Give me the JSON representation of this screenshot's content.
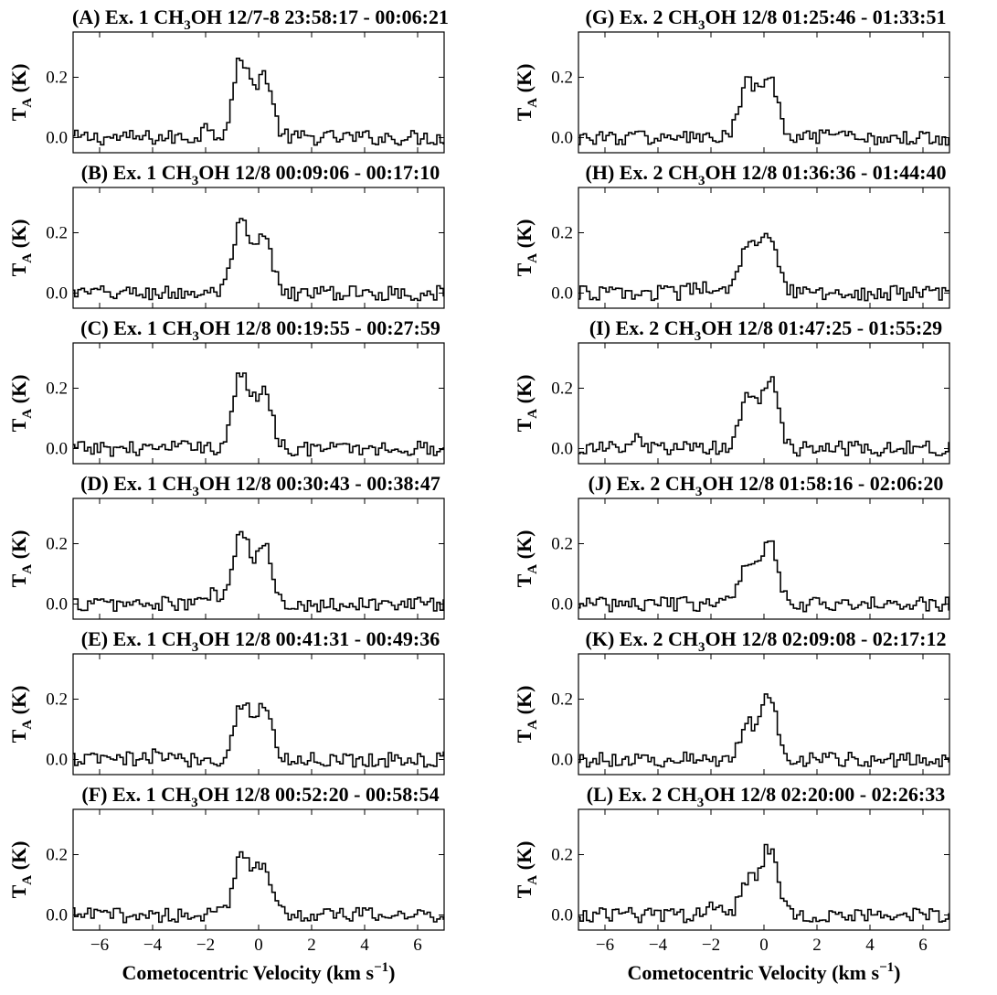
{
  "figure": {
    "xlabel": "Cometocentric Velocity (km s⁻¹)",
    "line_color": "#000000"
  },
  "chart_data": [
    {
      "type": "line",
      "panel": "A",
      "title": "(A) Ex. 1 CH₃OH 12/7-8 23:58:17 - 00:06:21",
      "ylabel": "T_A (K)",
      "xlabel": "",
      "xlim": [
        -7,
        7
      ],
      "ylim": [
        -0.05,
        0.35
      ],
      "xticks": [
        -6,
        -4,
        -2,
        0,
        2,
        4,
        6
      ],
      "yticks": [
        0.0,
        0.2
      ],
      "x_start": -7.0,
      "x_step": 0.122,
      "peaks": [
        [
          -0.65,
          0.26
        ],
        [
          0.2,
          0.21
        ]
      ],
      "bumps": [
        [
          -1.9,
          0.04
        ]
      ]
    },
    {
      "type": "line",
      "panel": "B",
      "title": "(B) Ex. 1 CH₃OH 12/8 00:09:06 - 00:17:10",
      "ylabel": "T_A (K)",
      "xlabel": "",
      "xlim": [
        -7,
        7
      ],
      "ylim": [
        -0.05,
        0.35
      ],
      "xticks": [
        -6,
        -4,
        -2,
        0,
        2,
        4,
        6
      ],
      "yticks": [
        0.0,
        0.2
      ],
      "x_start": -7.0,
      "x_step": 0.122,
      "peaks": [
        [
          -0.65,
          0.23
        ],
        [
          0.2,
          0.18
        ]
      ],
      "bumps": []
    },
    {
      "type": "line",
      "panel": "C",
      "title": "(C) Ex. 1 CH₃OH 12/8 00:19:55 - 00:27:59",
      "ylabel": "T_A (K)",
      "xlabel": "",
      "xlim": [
        -7,
        7
      ],
      "ylim": [
        -0.05,
        0.35
      ],
      "xticks": [
        -6,
        -4,
        -2,
        0,
        2,
        4,
        6
      ],
      "yticks": [
        0.0,
        0.2
      ],
      "x_start": -7.0,
      "x_step": 0.122,
      "peaks": [
        [
          -0.65,
          0.25
        ],
        [
          0.2,
          0.2
        ]
      ],
      "bumps": [
        [
          -2.4,
          0.02
        ]
      ]
    },
    {
      "type": "line",
      "panel": "D",
      "title": "(D) Ex. 1 CH₃OH 12/8 00:30:43 - 00:38:47",
      "ylabel": "T_A (K)",
      "xlabel": "",
      "xlim": [
        -7,
        7
      ],
      "ylim": [
        -0.05,
        0.35
      ],
      "xticks": [
        -6,
        -4,
        -2,
        0,
        2,
        4,
        6
      ],
      "yticks": [
        0.0,
        0.2
      ],
      "x_start": -7.0,
      "x_step": 0.122,
      "peaks": [
        [
          -0.65,
          0.23
        ],
        [
          0.2,
          0.19
        ]
      ],
      "bumps": [
        [
          -1.7,
          0.04
        ]
      ]
    },
    {
      "type": "line",
      "panel": "E",
      "title": "(E) Ex. 1 CH₃OH 12/8 00:41:31 - 00:49:36",
      "ylabel": "T_A (K)",
      "xlabel": "",
      "xlim": [
        -7,
        7
      ],
      "ylim": [
        -0.05,
        0.35
      ],
      "xticks": [
        -6,
        -4,
        -2,
        0,
        2,
        4,
        6
      ],
      "yticks": [
        0.0,
        0.2
      ],
      "x_start": -7.0,
      "x_step": 0.122,
      "peaks": [
        [
          -0.6,
          0.19
        ],
        [
          0.2,
          0.17
        ]
      ],
      "bumps": [
        [
          -3.8,
          0.02
        ]
      ]
    },
    {
      "type": "line",
      "panel": "F",
      "title": "(F) Ex. 1 CH₃OH 12/8 00:52:20 - 00:58:54",
      "ylabel": "T_A (K)",
      "xlabel": "Cometocentric Velocity (km s⁻¹)",
      "xlim": [
        -7,
        7
      ],
      "ylim": [
        -0.05,
        0.35
      ],
      "xticks": [
        -6,
        -4,
        -2,
        0,
        2,
        4,
        6
      ],
      "yticks": [
        0.0,
        0.2
      ],
      "x_start": -7.0,
      "x_step": 0.122,
      "peaks": [
        [
          -0.6,
          0.21
        ],
        [
          0.2,
          0.17
        ]
      ],
      "bumps": []
    },
    {
      "type": "line",
      "panel": "G",
      "title": "(G) Ex. 2 CH₃OH 12/8 01:25:46 - 01:33:51",
      "ylabel": "T_A (K)",
      "xlabel": "",
      "xlim": [
        -7,
        7
      ],
      "ylim": [
        -0.05,
        0.35
      ],
      "xticks": [
        -6,
        -4,
        -2,
        0,
        2,
        4,
        6
      ],
      "yticks": [
        0.0,
        0.2
      ],
      "x_start": -7.0,
      "x_step": 0.122,
      "peaks": [
        [
          -0.6,
          0.18
        ],
        [
          0.2,
          0.2
        ]
      ],
      "bumps": []
    },
    {
      "type": "line",
      "panel": "H",
      "title": "(H) Ex. 2 CH₃OH 12/8 01:36:36 - 01:44:40",
      "ylabel": "T_A (K)",
      "xlabel": "",
      "xlim": [
        -7,
        7
      ],
      "ylim": [
        -0.05,
        0.35
      ],
      "xticks": [
        -6,
        -4,
        -2,
        0,
        2,
        4,
        6
      ],
      "yticks": [
        0.0,
        0.2
      ],
      "x_start": -7.0,
      "x_step": 0.122,
      "peaks": [
        [
          -0.6,
          0.16
        ],
        [
          0.2,
          0.19
        ]
      ],
      "bumps": [
        [
          -2.5,
          0.03
        ]
      ]
    },
    {
      "type": "line",
      "panel": "I",
      "title": "(I) Ex. 2 CH₃OH 12/8 01:47:25 - 01:55:29",
      "ylabel": "T_A (K)",
      "xlabel": "",
      "xlim": [
        -7,
        7
      ],
      "ylim": [
        -0.05,
        0.35
      ],
      "xticks": [
        -6,
        -4,
        -2,
        0,
        2,
        4,
        6
      ],
      "yticks": [
        0.0,
        0.2
      ],
      "x_start": -7.0,
      "x_step": 0.122,
      "peaks": [
        [
          -0.6,
          0.17
        ],
        [
          0.2,
          0.23
        ]
      ],
      "bumps": [
        [
          -4.8,
          0.03
        ]
      ]
    },
    {
      "type": "line",
      "panel": "J",
      "title": "(J) Ex. 2 CH₃OH 12/8 01:58:16 - 02:06:20",
      "ylabel": "T_A (K)",
      "xlabel": "",
      "xlim": [
        -7,
        7
      ],
      "ylim": [
        -0.05,
        0.35
      ],
      "xticks": [
        -6,
        -4,
        -2,
        0,
        2,
        4,
        6
      ],
      "yticks": [
        0.0,
        0.2
      ],
      "x_start": -7.0,
      "x_step": 0.122,
      "peaks": [
        [
          -0.6,
          0.14
        ],
        [
          0.2,
          0.22
        ]
      ],
      "bumps": []
    },
    {
      "type": "line",
      "panel": "K",
      "title": "(K) Ex. 2 CH₃OH 12/8 02:09:08 - 02:17:12",
      "ylabel": "T_A (K)",
      "xlabel": "",
      "xlim": [
        -7,
        7
      ],
      "ylim": [
        -0.05,
        0.35
      ],
      "xticks": [
        -6,
        -4,
        -2,
        0,
        2,
        4,
        6
      ],
      "yticks": [
        0.0,
        0.2
      ],
      "x_start": -7.0,
      "x_step": 0.122,
      "peaks": [
        [
          -0.6,
          0.11
        ],
        [
          0.2,
          0.22
        ]
      ],
      "bumps": []
    },
    {
      "type": "line",
      "panel": "L",
      "title": "(L) Ex. 2 CH₃OH 12/8 02:20:00 - 02:26:33",
      "ylabel": "T_A (K)",
      "xlabel": "Cometocentric Velocity (km s⁻¹)",
      "xlim": [
        -7,
        7
      ],
      "ylim": [
        -0.05,
        0.35
      ],
      "xticks": [
        -6,
        -4,
        -2,
        0,
        2,
        4,
        6
      ],
      "yticks": [
        0.0,
        0.2
      ],
      "x_start": -7.0,
      "x_step": 0.122,
      "peaks": [
        [
          -0.6,
          0.12
        ],
        [
          0.2,
          0.22
        ]
      ],
      "bumps": [
        [
          -2.0,
          0.05
        ]
      ]
    }
  ]
}
